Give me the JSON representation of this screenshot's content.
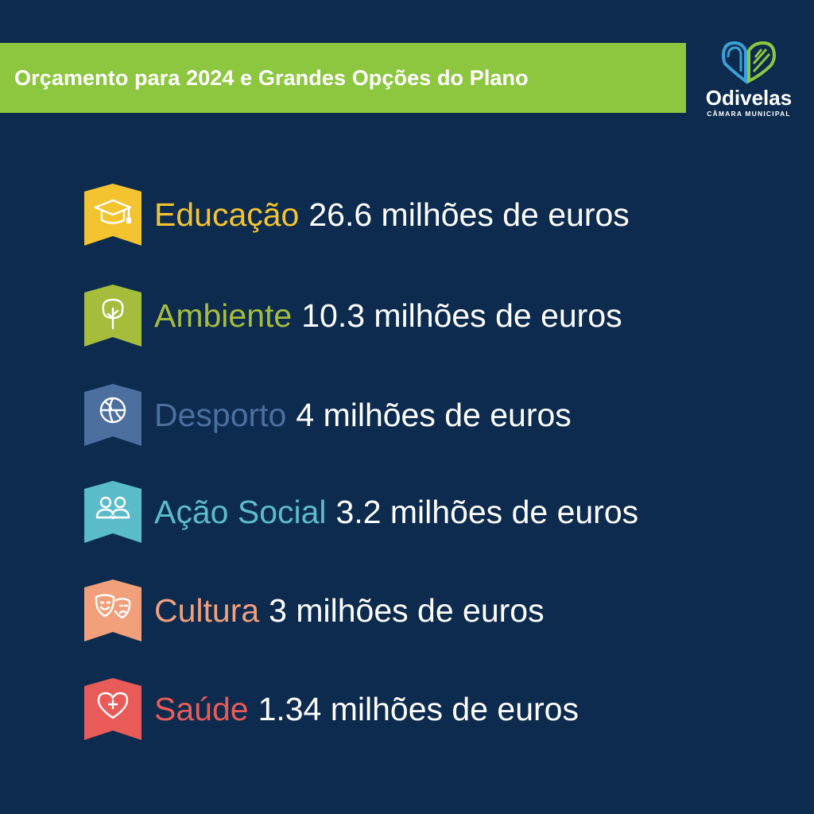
{
  "header": {
    "title": "Orçamento para 2024 e Grandes Opções do Plano"
  },
  "logo": {
    "name": "Odivelas",
    "subtitle": "CÂMARA MUNICIPAL"
  },
  "items": [
    {
      "category": "Educação",
      "amount": "26.6 milhões de euros",
      "color": "#f4c430",
      "icon": "graduation-cap-icon"
    },
    {
      "category": "Ambiente",
      "amount": "10.3 milhões de euros",
      "color": "#a6bd3c",
      "icon": "tree-icon"
    },
    {
      "category": "Desporto",
      "amount": "4 milhões de euros",
      "color": "#4c6f9f",
      "icon": "basketball-icon"
    },
    {
      "category": "Ação Social",
      "amount": "3.2 milhões de euros",
      "color": "#5bbcc9",
      "icon": "people-icon"
    },
    {
      "category": "Cultura",
      "amount": "3 milhões de euros",
      "color": "#f2a07b",
      "icon": "theater-masks-icon"
    },
    {
      "category": "Saúde",
      "amount": "1.34 milhões de euros",
      "color": "#e85b58",
      "icon": "heart-cross-icon"
    }
  ]
}
